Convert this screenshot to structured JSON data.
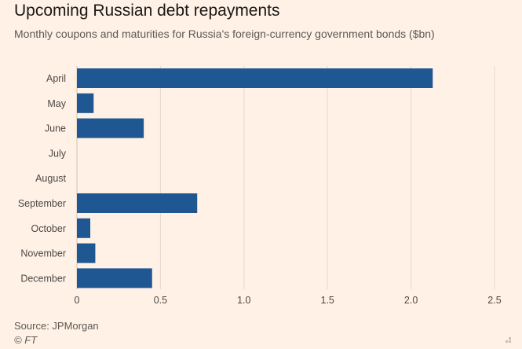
{
  "header": {
    "title": "Upcoming Russian debt repayments",
    "subtitle": "Monthly coupons and maturities for Russia's foreign-currency government bonds ($bn)"
  },
  "footer": {
    "source": "Source: JPMorgan",
    "credit": "© FT"
  },
  "colors": {
    "bar": "#1f5792",
    "grid": "#e3d9cf",
    "baseline": "#cfc4b9",
    "background": "#fff1e5"
  },
  "chart_data": {
    "type": "bar",
    "orientation": "horizontal",
    "title": "Upcoming Russian debt repayments",
    "subtitle": "Monthly coupons and maturities for Russia's foreign-currency government bonds ($bn)",
    "xlabel": "",
    "ylabel": "",
    "categories": [
      "April",
      "May",
      "June",
      "July",
      "August",
      "September",
      "October",
      "November",
      "December"
    ],
    "values": [
      2.13,
      0.1,
      0.4,
      0,
      0,
      0.72,
      0.08,
      0.11,
      0.45
    ],
    "xlim": [
      0,
      2.5
    ],
    "ticks": [
      0,
      0.5,
      1.0,
      1.5,
      2.0,
      2.5
    ],
    "tick_labels": [
      "0",
      "0.5",
      "1.0",
      "1.5",
      "2.0",
      "2.5"
    ],
    "grid": true,
    "legend": "none"
  }
}
